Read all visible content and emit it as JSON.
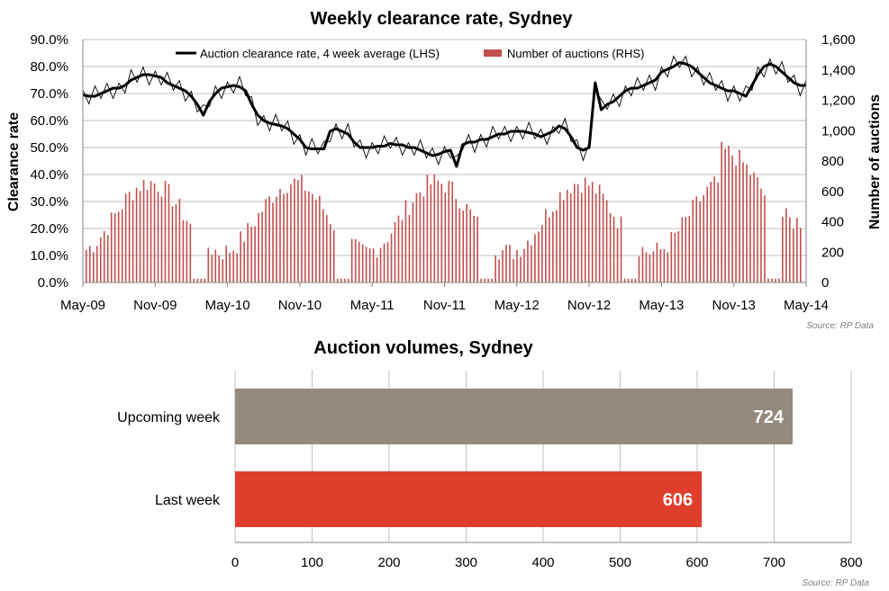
{
  "chart_data": [
    {
      "type": "line",
      "title": "Weekly clearance rate, Sydney",
      "ylabel": "Clearance rate",
      "y2label": "Number of auctions",
      "source": "Source: RP Data",
      "ylim": [
        0,
        90
      ],
      "y2lim": [
        0,
        1600
      ],
      "yticks": [
        "0.0%",
        "10.0%",
        "20.0%",
        "30.0%",
        "40.0%",
        "50.0%",
        "60.0%",
        "70.0%",
        "80.0%",
        "90.0%"
      ],
      "y2ticks": [
        "0",
        "200",
        "400",
        "600",
        "800",
        "1,000",
        "1,200",
        "1,400",
        "1,600"
      ],
      "xticks": [
        "May-09",
        "Nov-09",
        "May-10",
        "Nov-10",
        "May-11",
        "Nov-11",
        "May-12",
        "Nov-12",
        "May-13",
        "Nov-13",
        "May-14"
      ],
      "legend_placement": "top-center",
      "grid": true,
      "series": [
        {
          "name": "Auction clearance rate, 4 week average (LHS)",
          "axis": "left",
          "style": "line",
          "color": "#000000",
          "x": [
            0,
            0.5,
            1,
            1.5,
            2,
            2.5,
            3,
            3.5,
            4,
            4.5,
            5,
            5.5,
            6,
            6.5,
            7,
            7.5,
            8,
            8.5,
            9,
            9.5,
            10,
            10.5,
            11,
            11.5,
            12,
            12.5,
            13,
            13.5,
            14,
            14.5,
            15,
            15.5,
            16,
            16.5,
            17,
            17.5,
            18,
            18.5,
            19,
            19.5,
            20,
            20.5,
            21,
            21.5,
            22,
            22.5,
            23,
            23.5,
            24,
            24.5,
            25,
            25.5,
            26,
            26.5,
            27,
            27.5,
            28,
            28.5,
            29,
            29.5,
            30,
            30.5,
            31,
            31.5,
            32,
            32.5,
            33,
            33.5,
            34,
            34.5,
            35,
            35.5,
            36,
            36.5,
            37,
            37.5,
            38,
            38.5,
            39,
            39.5,
            40,
            40.5,
            41,
            41.5,
            42,
            42.5,
            43,
            43.5,
            44,
            44.5,
            45,
            45.5,
            46,
            46.5,
            47,
            47.5,
            48,
            48.5,
            49,
            49.5,
            50,
            50.5,
            51,
            51.5,
            52,
            52.5,
            53,
            53.5,
            54,
            54.5,
            55,
            55.5,
            56,
            56.5,
            57,
            57.5,
            58,
            58.5,
            59,
            59.5,
            60
          ],
          "values": [
            69.5,
            69,
            69,
            70,
            71,
            72,
            72,
            73,
            75,
            76,
            77,
            77,
            76.5,
            76,
            74,
            73,
            72,
            71,
            69,
            66,
            62,
            67,
            70,
            72,
            72.5,
            73,
            72.5,
            71,
            66,
            62,
            60,
            59,
            58.5,
            58,
            57,
            55,
            53,
            50,
            49.5,
            49.5,
            49.5,
            56,
            57,
            56,
            55,
            52,
            50,
            50,
            50,
            50.5,
            50.5,
            51.5,
            51,
            51,
            50,
            50,
            49,
            48,
            47,
            47.5,
            48.5,
            49,
            43,
            51,
            52,
            52,
            53,
            53,
            54,
            55,
            55,
            56,
            56,
            56,
            55.5,
            55,
            54,
            55,
            56,
            58,
            57,
            54,
            50,
            49,
            50,
            74,
            64,
            66,
            67,
            69,
            71,
            72,
            72,
            73,
            74,
            75,
            78,
            79,
            80,
            81.5,
            81,
            80,
            78,
            76,
            74,
            73,
            72,
            71,
            71,
            70,
            69,
            73,
            77,
            80,
            81,
            80,
            78,
            76,
            74,
            73,
            73
          ]
        },
        {
          "name": "Number of auctions (RHS)",
          "axis": "right",
          "style": "bar",
          "color": "#c0504d"
        }
      ]
    },
    {
      "type": "bar",
      "orientation": "horizontal",
      "title": "Auction volumes, Sydney",
      "source": "Source: RP Data",
      "categories": [
        "Upcoming week",
        "Last week"
      ],
      "values": [
        724,
        606
      ],
      "colors": [
        "#948a7e",
        "#e03e2d"
      ],
      "xlim": [
        0,
        800
      ],
      "xticks": [
        "0",
        "100",
        "200",
        "300",
        "400",
        "500",
        "600",
        "700",
        "800"
      ],
      "grid": true
    }
  ]
}
